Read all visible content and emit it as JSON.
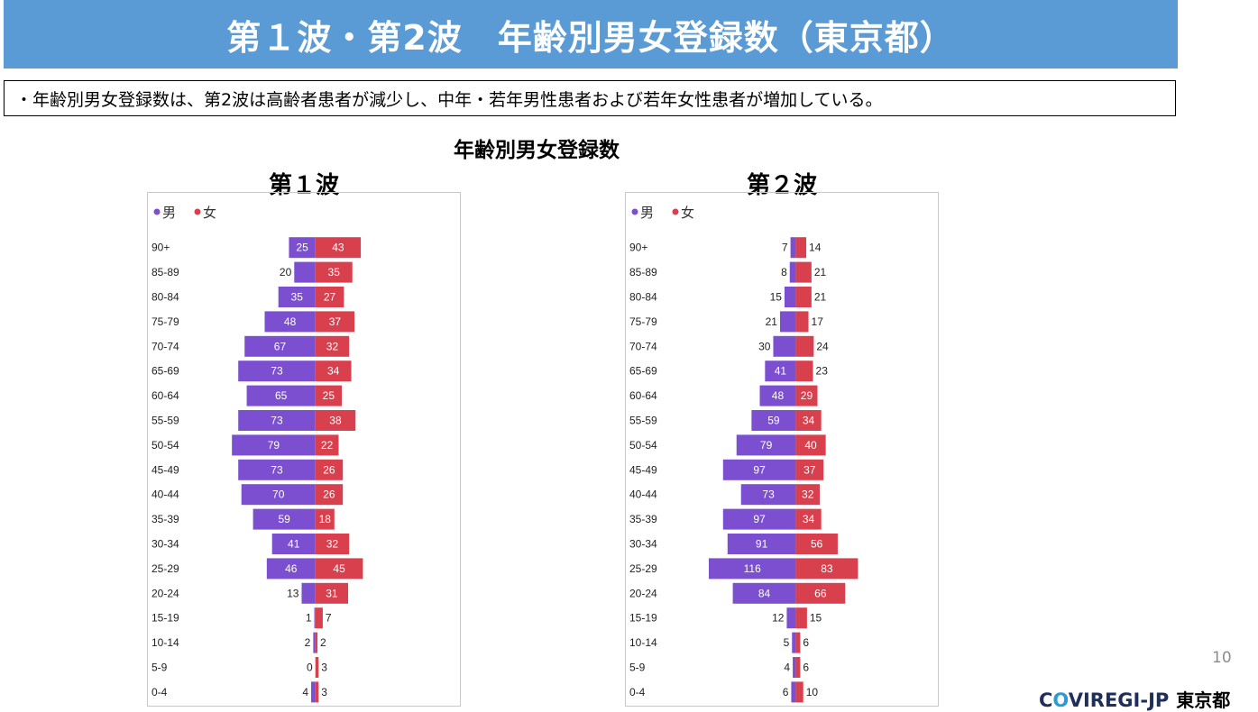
{
  "page": {
    "title": "第１波・第2波　年齢別男女登録数（東京都）",
    "summary": "・年齢別男女登録数は、第2波は高齢者患者が減少し、中年・若年男性患者および若年女性患者が増加している。",
    "chart_heading": "年齢別男女登録数",
    "page_number": "10",
    "logo": {
      "part1": "C",
      "part2": "O",
      "part3": "VIREGI-JP",
      "org": "東京都"
    }
  },
  "chart_data": [
    {
      "type": "bar",
      "title": "第１波",
      "orientation": "horizontal-population-pyramid",
      "categories": [
        "90+",
        "85-89",
        "80-84",
        "75-79",
        "70-74",
        "65-69",
        "60-64",
        "55-59",
        "50-54",
        "45-49",
        "40-44",
        "35-39",
        "30-34",
        "25-29",
        "20-24",
        "15-19",
        "10-14",
        "5-9",
        "0-4"
      ],
      "series": [
        {
          "name": "男",
          "color": "#7b4fcf",
          "values": [
            25,
            20,
            35,
            48,
            67,
            73,
            65,
            73,
            79,
            73,
            70,
            59,
            41,
            46,
            13,
            1,
            2,
            0,
            4
          ]
        },
        {
          "name": "女",
          "color": "#d9404e",
          "values": [
            43,
            35,
            27,
            37,
            32,
            34,
            25,
            38,
            22,
            26,
            26,
            18,
            32,
            45,
            31,
            7,
            2,
            3,
            3
          ]
        }
      ],
      "legend": "top-left",
      "grid": false,
      "xlim": [
        -80,
        130
      ]
    },
    {
      "type": "bar",
      "title": "第２波",
      "orientation": "horizontal-population-pyramid",
      "categories": [
        "90+",
        "85-89",
        "80-84",
        "75-79",
        "70-74",
        "65-69",
        "60-64",
        "55-59",
        "50-54",
        "45-49",
        "40-44",
        "35-39",
        "30-34",
        "25-29",
        "20-24",
        "15-19",
        "10-14",
        "5-9",
        "0-4"
      ],
      "series": [
        {
          "name": "男",
          "color": "#7b4fcf",
          "values": [
            7,
            8,
            15,
            21,
            30,
            41,
            48,
            59,
            79,
            97,
            73,
            97,
            91,
            116,
            84,
            12,
            5,
            4,
            6
          ]
        },
        {
          "name": "女",
          "color": "#d9404e",
          "values": [
            14,
            21,
            21,
            17,
            24,
            23,
            29,
            34,
            40,
            37,
            32,
            34,
            56,
            83,
            66,
            15,
            6,
            6,
            10
          ]
        }
      ],
      "legend": "top-left",
      "grid": false,
      "xlim": [
        -116,
        180
      ]
    }
  ]
}
